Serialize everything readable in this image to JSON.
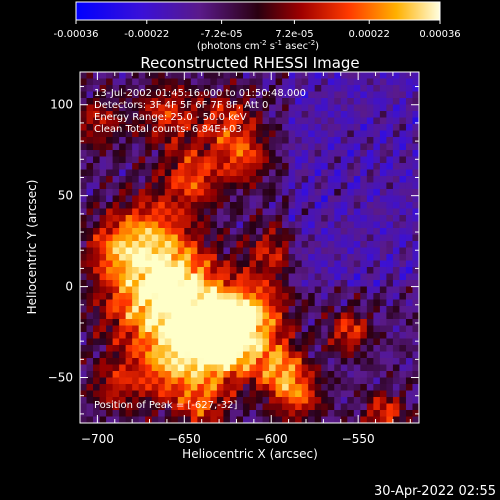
{
  "title": "Reconstructed RHESSI Image",
  "colorbar": {
    "ticks": [
      "-0.00036",
      "-0.00022",
      "-7.2e-05",
      "7.2e-05",
      "0.00022",
      "0.00036"
    ],
    "tick_values": [
      -0.00036,
      -0.00022,
      -7.2e-05,
      7.2e-05,
      0.00022,
      0.00036
    ],
    "range": [
      -0.00036,
      0.00036
    ],
    "unit_label": "(photons cm",
    "unit_exp1": "-2",
    "unit_mid": " s",
    "unit_exp2": "-1",
    "unit_end": " asec",
    "unit_exp3": "-2",
    "unit_close": ")"
  },
  "annotations": {
    "line1": "13-Jul-2002 01:45:16.000 to 01:50:48.000",
    "line2": "Detectors: 3F 4F 5F 6F 7F 8F, Att 0",
    "line3": "Energy Range: 25.0 - 50.0 keV",
    "line4": "Clean      Total counts: 6.84E+03",
    "peak": "Position of Peak = [-627,-32]"
  },
  "footer_timestamp": "30-Apr-2022 02:55",
  "colors": {
    "low": "#0000ff",
    "mid": "#5a1a8a",
    "high": "#ffff60"
  },
  "chart_data": {
    "type": "heatmap",
    "title": "Reconstructed RHESSI Image",
    "xlabel": "Heliocentric X (arcsec)",
    "ylabel": "Heliocentric Y (arcsec)",
    "xlim": [
      -710,
      -515
    ],
    "ylim": [
      -75,
      118
    ],
    "xticks": [
      -700,
      -650,
      -600,
      -550
    ],
    "xtick_labels": [
      "−700",
      "−650",
      "−600",
      "−550"
    ],
    "yticks": [
      -50,
      0,
      50,
      100
    ],
    "ytick_labels": [
      "−50",
      "0",
      "50",
      "100"
    ],
    "peak_position": [
      -627,
      -32
    ],
    "colormap": "blue-purple-red-yellow-white"
  }
}
